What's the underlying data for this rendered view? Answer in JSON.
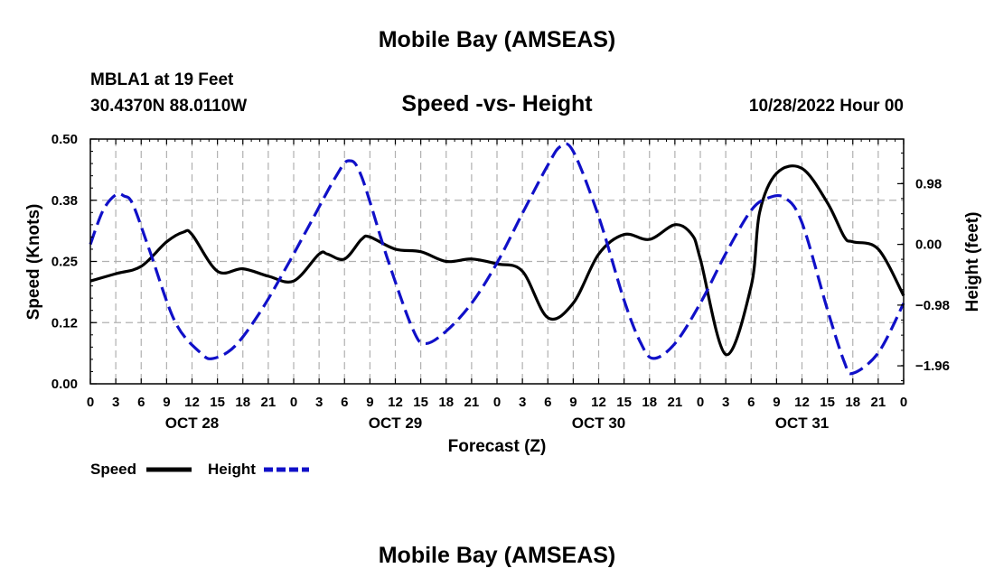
{
  "header": {
    "title": "Mobile Bay (AMSEAS)",
    "station": "MBLA1 at 19 Feet",
    "coords": "30.4370N  88.0110W",
    "subtitle": "Speed -vs- Height",
    "datetime": "10/28/2022 Hour 00",
    "footer_title": "Mobile Bay (AMSEAS)"
  },
  "colors": {
    "speed": "#000000",
    "height": "#1010c8",
    "grid": "#b0b0b0"
  },
  "chart_data": {
    "type": "line",
    "title": "Speed -vs- Height",
    "xlabel": "Forecast (Z)",
    "ylabel": "Speed (Knots)",
    "y2label": "Height (feet)",
    "xlim": [
      0,
      96
    ],
    "ylim": [
      0,
      0.5
    ],
    "y2lim": [
      -2.25,
      1.7
    ],
    "x_tick_labels": [
      "0",
      "3",
      "6",
      "9",
      "12",
      "15",
      "18",
      "21",
      "0",
      "3",
      "6",
      "9",
      "12",
      "15",
      "18",
      "21",
      "0",
      "3",
      "6",
      "9",
      "12",
      "15",
      "18",
      "21",
      "0",
      "3",
      "6",
      "9",
      "12",
      "15",
      "18",
      "21",
      "0"
    ],
    "y_tick_labels": [
      "0.00",
      "0.12",
      "0.25",
      "0.38",
      "0.50"
    ],
    "y_ticks": [
      0,
      0.125,
      0.25,
      0.375,
      0.5
    ],
    "y2_tick_labels": [
      "−1.96",
      "−0.98",
      "0.00",
      "0.98"
    ],
    "y2_ticks": [
      -1.96,
      -0.98,
      0,
      0.98
    ],
    "day_labels": [
      {
        "label": "OCT 28",
        "x": 12
      },
      {
        "label": "OCT 29",
        "x": 36
      },
      {
        "label": "OCT 30",
        "x": 60
      },
      {
        "label": "OCT 31",
        "x": 84
      }
    ],
    "series": [
      {
        "name": "Speed",
        "axis": "left",
        "style": "solid",
        "x": [
          0,
          3,
          6,
          9,
          11,
          12,
          15,
          18,
          21,
          24,
          27,
          28,
          30,
          32,
          33,
          36,
          39,
          42,
          45,
          48,
          51,
          54,
          57,
          60,
          63,
          66,
          69,
          71,
          72,
          75,
          78,
          79,
          81,
          84,
          87,
          89,
          90,
          93,
          96
        ],
        "y": [
          0.21,
          0.225,
          0.24,
          0.29,
          0.31,
          0.305,
          0.23,
          0.235,
          0.22,
          0.21,
          0.265,
          0.265,
          0.255,
          0.295,
          0.3,
          0.275,
          0.27,
          0.25,
          0.255,
          0.245,
          0.23,
          0.135,
          0.165,
          0.265,
          0.305,
          0.295,
          0.325,
          0.305,
          0.255,
          0.06,
          0.2,
          0.35,
          0.43,
          0.44,
          0.37,
          0.3,
          0.29,
          0.275,
          0.18
        ]
      },
      {
        "name": "Height",
        "axis": "right",
        "style": "dashed",
        "x": [
          0,
          1.5,
          3,
          4,
          5,
          7,
          10,
          13,
          14.5,
          17,
          20,
          23,
          26,
          29,
          30.5,
          32,
          35,
          38,
          39.5,
          42,
          45,
          48,
          51,
          54,
          55.5,
          57,
          60,
          63,
          65,
          66.5,
          69,
          72,
          75,
          78,
          80,
          82,
          84,
          87,
          89,
          90,
          93,
          96
        ],
        "y": [
          0,
          0.55,
          0.8,
          0.78,
          0.65,
          -0.1,
          -1.25,
          -1.75,
          -1.84,
          -1.65,
          -1.1,
          -0.4,
          0.35,
          1.1,
          1.35,
          1.1,
          -0.2,
          -1.35,
          -1.6,
          -1.4,
          -0.95,
          -0.3,
          0.5,
          1.28,
          1.58,
          1.5,
          0.45,
          -0.9,
          -1.6,
          -1.84,
          -1.6,
          -0.95,
          -0.15,
          0.55,
          0.75,
          0.75,
          0.35,
          -1.05,
          -1.9,
          -2.08,
          -1.75,
          -0.95
        ]
      }
    ],
    "legend": {
      "position": "bottom-left",
      "entries": [
        "Speed",
        "Height"
      ]
    }
  }
}
